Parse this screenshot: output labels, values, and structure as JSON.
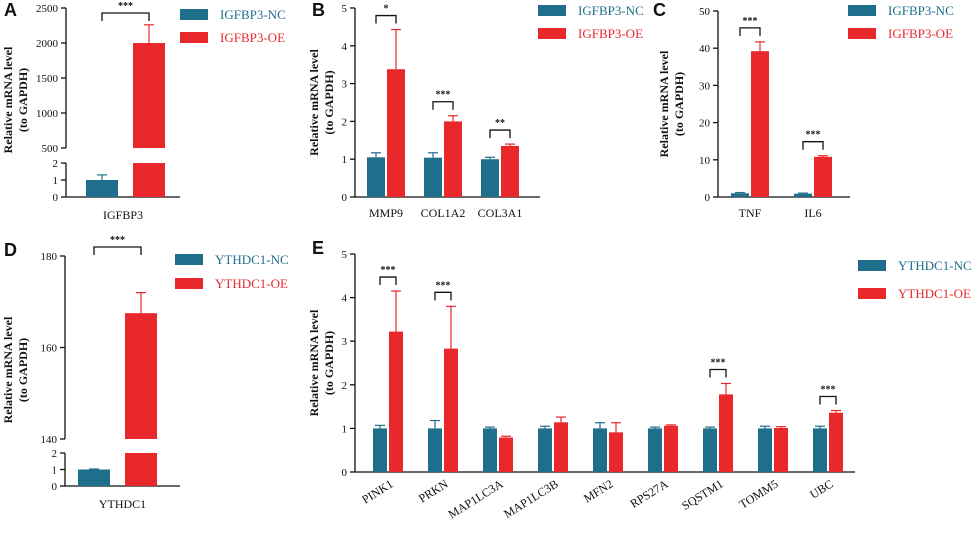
{
  "colors": {
    "nc": "#1f6e8c",
    "oe": "#e8282b",
    "axis": "#111111"
  },
  "chart_data": [
    {
      "panel": "A",
      "type": "bar",
      "categories": [
        "IGFBP3"
      ],
      "series": [
        {
          "name": "IGFBP3-NC",
          "values": [
            1.0
          ],
          "errors": [
            0.3
          ]
        },
        {
          "name": "IGFBP3-OE",
          "values": [
            2000
          ],
          "errors": [
            260
          ]
        }
      ],
      "ylabel": [
        "Relative mRNA level",
        "(to GAPDH)"
      ],
      "axis_break": true,
      "ylim_lower": [
        0,
        2
      ],
      "ylim_upper": [
        500,
        2500
      ],
      "yticks_lower": [
        "0",
        "1",
        "2"
      ],
      "yticks_upper": [
        "500",
        "1000",
        "1500",
        "2000",
        "2500"
      ],
      "significance": [
        "***"
      ],
      "xlabel": "IGFBP3"
    },
    {
      "panel": "B",
      "type": "bar",
      "categories": [
        "MMP9",
        "COL1A2",
        "COL3A1"
      ],
      "series": [
        {
          "name": "IGFBP3-NC",
          "values": [
            1.05,
            1.04,
            1.0
          ],
          "errors": [
            0.12,
            0.13,
            0.05
          ]
        },
        {
          "name": "IGFBP3-OE",
          "values": [
            3.38,
            2.0,
            1.35
          ],
          "errors": [
            1.05,
            0.15,
            0.05
          ]
        }
      ],
      "ylabel": [
        "Relative mRNA level",
        "(to GAPDH)"
      ],
      "ylim": [
        0,
        5
      ],
      "yticks": [
        "0",
        "1",
        "2",
        "3",
        "4",
        "5"
      ],
      "significance": [
        "*",
        "***",
        "**"
      ]
    },
    {
      "panel": "C",
      "type": "bar",
      "categories": [
        "TNF",
        "IL6"
      ],
      "series": [
        {
          "name": "IGFBP3-NC",
          "values": [
            1.0,
            0.9
          ],
          "errors": [
            0.2,
            0.15
          ]
        },
        {
          "name": "IGFBP3-OE",
          "values": [
            39.2,
            10.8
          ],
          "errors": [
            2.5,
            0.3
          ]
        }
      ],
      "ylabel": [
        "Relative mRNA level",
        "(to GAPDH)"
      ],
      "ylim": [
        0,
        50
      ],
      "yticks": [
        "0",
        "10",
        "20",
        "30",
        "40",
        "50"
      ],
      "significance": [
        "***",
        "***"
      ]
    },
    {
      "panel": "D",
      "type": "bar",
      "categories": [
        "YTHDC1"
      ],
      "series": [
        {
          "name": "YTHDC1-NC",
          "values": [
            1.0
          ],
          "errors": [
            0.03
          ]
        },
        {
          "name": "YTHDC1-OE",
          "values": [
            167.5
          ],
          "errors": [
            4.5
          ]
        }
      ],
      "ylabel": [
        "Relative mRNA level",
        "(to GAPDH)"
      ],
      "axis_break": true,
      "ylim_lower": [
        0,
        2
      ],
      "ylim_upper": [
        140,
        180
      ],
      "yticks_lower": [
        "0",
        "1",
        "2"
      ],
      "yticks_upper": [
        "140",
        "160",
        "180"
      ],
      "significance": [
        "***"
      ],
      "xlabel": "YTHDC1"
    },
    {
      "panel": "E",
      "type": "bar",
      "categories": [
        "PINK1",
        "PRKN",
        "MAP1LC3A",
        "MAP1LC3B",
        "MFN2",
        "RPS27A",
        "SQSTM1",
        "TOMM5",
        "UBC"
      ],
      "series": [
        {
          "name": "YTHDC1-NC",
          "values": [
            1.0,
            1.0,
            1.0,
            1.0,
            1.0,
            1.0,
            1.0,
            1.0,
            1.0
          ],
          "errors": [
            0.07,
            0.18,
            0.03,
            0.05,
            0.13,
            0.03,
            0.03,
            0.05,
            0.05
          ]
        },
        {
          "name": "YTHDC1-OE",
          "values": [
            3.22,
            2.83,
            0.79,
            1.14,
            0.91,
            1.06,
            1.78,
            1.01,
            1.36
          ],
          "errors": [
            0.93,
            0.97,
            0.03,
            0.12,
            0.22,
            0.02,
            0.25,
            0.03,
            0.05
          ]
        }
      ],
      "ylabel": [
        "Relative mRNA level",
        "(to GAPDH)"
      ],
      "ylim": [
        0,
        5
      ],
      "yticks": [
        "0",
        "1",
        "2",
        "3",
        "4",
        "5"
      ],
      "significance": [
        "***",
        "***",
        "",
        "",
        "",
        "",
        "***",
        "",
        "***"
      ]
    }
  ]
}
